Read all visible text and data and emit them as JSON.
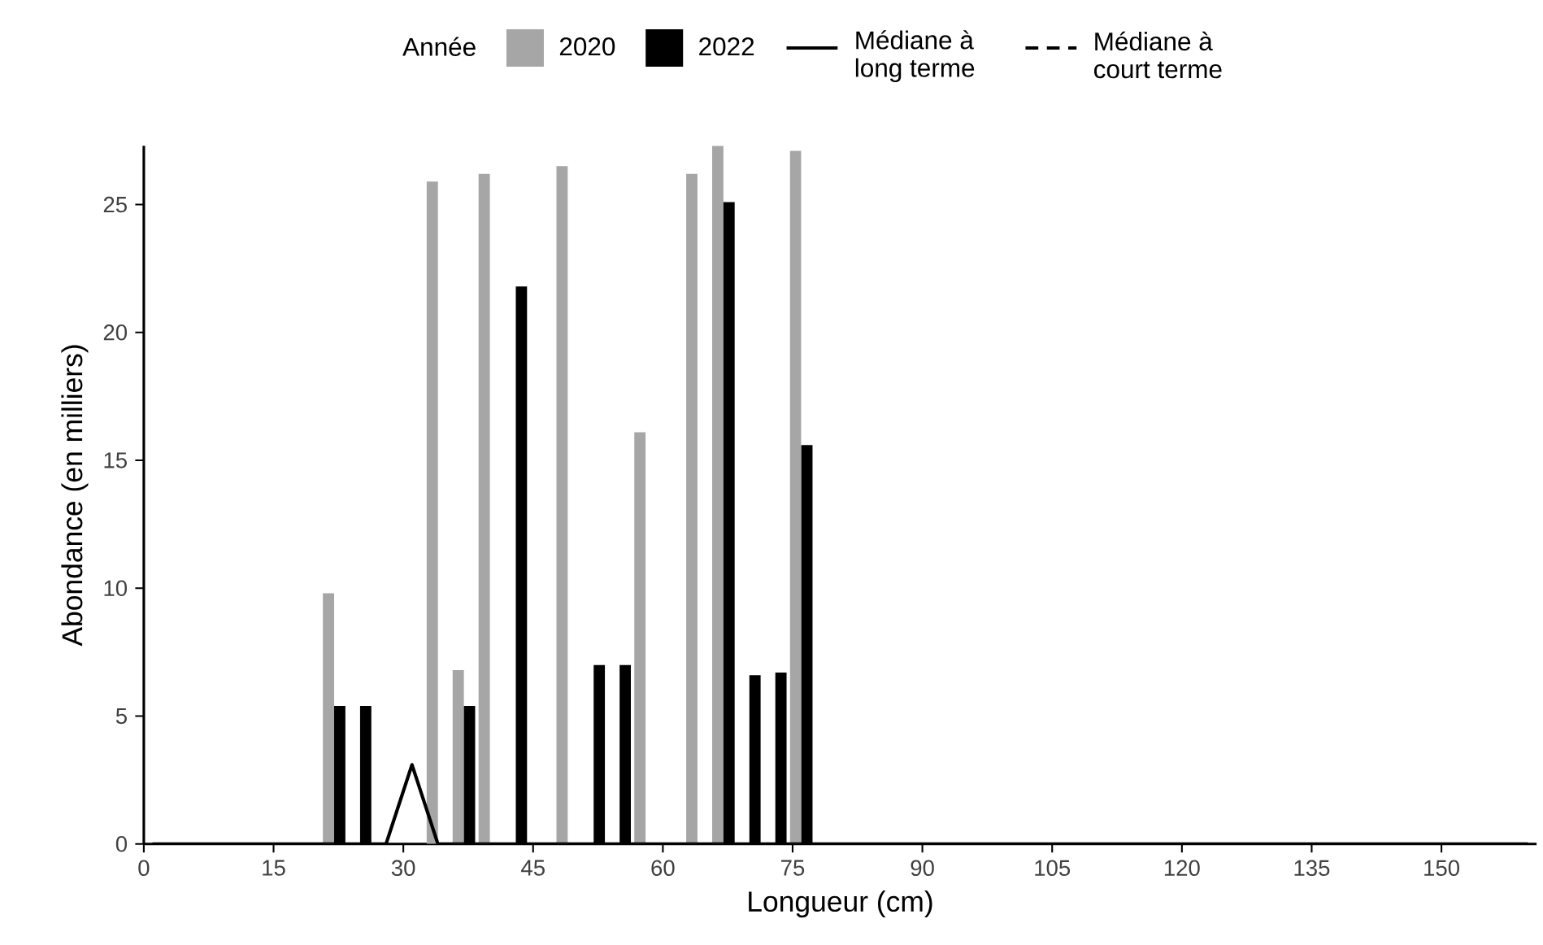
{
  "chart_data": {
    "type": "bar",
    "xlabel": "Longueur (cm)",
    "ylabel": "Abondance (en milliers)",
    "legend_title": "Année",
    "legend": "top",
    "grid": false,
    "x": [
      22,
      25,
      28,
      31,
      34,
      37,
      40,
      43,
      46,
      49,
      52,
      55,
      58,
      61,
      64,
      67,
      70,
      73,
      76
    ],
    "xlim": [
      0,
      161
    ],
    "xticks": [
      0,
      15,
      30,
      45,
      60,
      75,
      90,
      105,
      120,
      135,
      150
    ],
    "ylim": [
      0,
      27.3
    ],
    "yticks": [
      0,
      5,
      10,
      15,
      20,
      25
    ],
    "series": [
      {
        "name": "2020",
        "color": "#a6a6a6",
        "values": [
          9.8,
          null,
          null,
          null,
          25.9,
          6.8,
          26.2,
          null,
          null,
          26.5,
          null,
          null,
          16.1,
          null,
          26.2,
          27.3,
          null,
          null,
          27.1
        ]
      },
      {
        "name": "2022",
        "color": "#000000",
        "values": [
          5.4,
          5.4,
          null,
          null,
          null,
          5.4,
          null,
          21.8,
          null,
          null,
          7.0,
          7.0,
          null,
          null,
          null,
          25.1,
          6.6,
          6.7,
          15.6
        ]
      },
      {
        "name": "Médiane à long terme",
        "type": "line",
        "line_style": "solid",
        "color": "#000000",
        "x": [
          1,
          28,
          31,
          34,
          160
        ],
        "values": [
          0,
          0,
          3.1,
          0,
          0
        ]
      },
      {
        "name": "Médiane à court terme",
        "type": "line",
        "line_style": "dashed",
        "color": "#000000",
        "values": [
          null,
          null,
          null,
          null,
          null,
          null,
          null,
          null,
          null,
          null,
          null,
          null,
          null,
          null,
          null,
          null,
          null,
          null,
          null
        ]
      }
    ]
  }
}
